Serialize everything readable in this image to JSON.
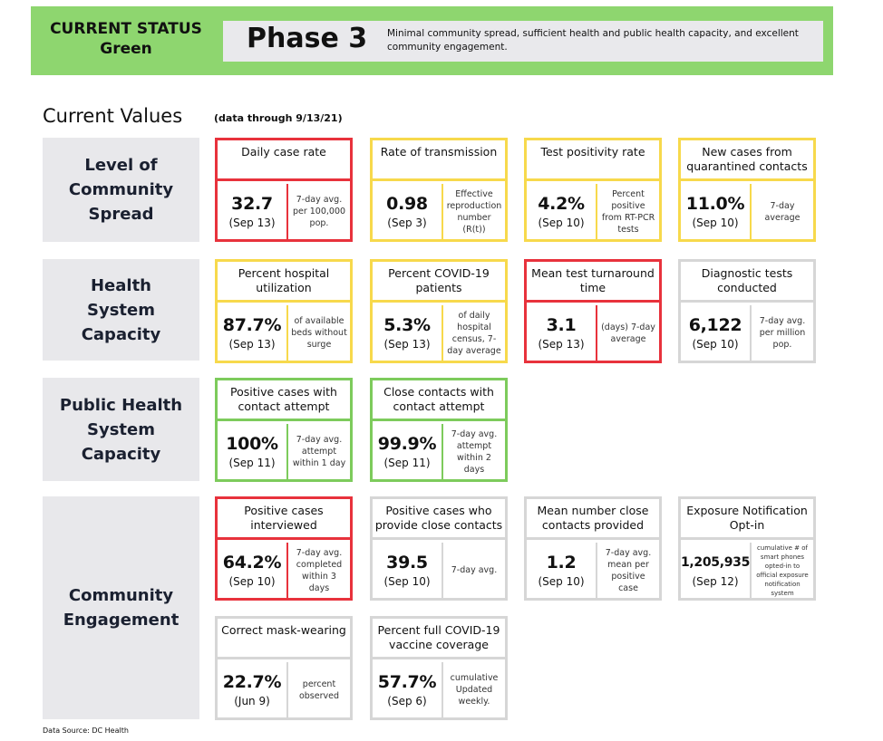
{
  "banner": {
    "status_label": "CURRENT STATUS",
    "status_value": "Green",
    "phase": "Phase 3",
    "phase_description": "Minimal community spread, sufficient health and public health capacity, and excellent community engagement."
  },
  "current_values": {
    "title": "Current Values",
    "note": "(data through 9/13/21)"
  },
  "colors": {
    "red": "#e8323c",
    "yellow": "#f7d94c",
    "green": "#7dcb5c",
    "gray": "#d6d6d6",
    "banner": "#8ed66f"
  },
  "sections": [
    {
      "label": "Level of Community Spread",
      "cards": [
        {
          "title": "Daily case rate",
          "value": "32.7",
          "date": "(Sep 13)",
          "note": "7-day avg. per 100,000 pop.",
          "status": "red"
        },
        {
          "title": "Rate of transmission",
          "value": "0.98",
          "date": "(Sep 3)",
          "note": "Effective reproduction number (R(t))",
          "status": "yellow"
        },
        {
          "title": "Test positivity rate",
          "value": "4.2%",
          "date": "(Sep 10)",
          "note": "Percent positive from RT-PCR tests",
          "status": "yellow"
        },
        {
          "title": "New cases from quarantined contacts",
          "value": "11.0%",
          "date": "(Sep 10)",
          "note": "7-day average",
          "status": "yellow"
        }
      ]
    },
    {
      "label": "Health System Capacity",
      "cards": [
        {
          "title": "Percent hospital utilization",
          "value": "87.7%",
          "date": "(Sep 13)",
          "note": "of available beds without surge",
          "status": "yellow"
        },
        {
          "title": "Percent COVID-19 patients",
          "value": "5.3%",
          "date": "(Sep 13)",
          "note": "of daily hospital census, 7-day average",
          "status": "yellow"
        },
        {
          "title": "Mean test turnaround time",
          "value": "3.1",
          "date": "(Sep 13)",
          "note": "(days) 7-day average",
          "status": "red"
        },
        {
          "title": "Diagnostic tests conducted",
          "value": "6,122",
          "date": "(Sep 10)",
          "note": "7-day avg. per million pop.",
          "status": "gray"
        }
      ]
    },
    {
      "label": "Public Health System Capacity",
      "cards": [
        {
          "title": "Positive cases with contact attempt",
          "value": "100%",
          "date": "(Sep 11)",
          "note": "7-day avg. attempt within 1 day",
          "status": "green"
        },
        {
          "title": "Close contacts with contact attempt",
          "value": "99.9%",
          "date": "(Sep 11)",
          "note": "7-day avg. attempt within 2 days",
          "status": "green"
        }
      ]
    },
    {
      "label": "Community Engagement",
      "cards": [
        {
          "title": "Positive cases interviewed",
          "value": "64.2%",
          "date": "(Sep 10)",
          "note": "7-day avg. completed within 3 days",
          "status": "red"
        },
        {
          "title": "Positive cases who provide close contacts",
          "value": "39.5",
          "date": "(Sep 10)",
          "note": "7-day avg.",
          "status": "gray"
        },
        {
          "title": "Mean number close contacts provided",
          "value": "1.2",
          "date": "(Sep 10)",
          "note": "7-day avg. mean per positive case",
          "status": "gray"
        },
        {
          "title": "Exposure Notification Opt-in",
          "value": "1,205,935",
          "date": "(Sep 12)",
          "note": "cumulative # of smart phones opted-in to official exposure notification system",
          "status": "gray"
        },
        {
          "title": "Correct mask-wearing",
          "value": "22.7%",
          "date": "(Jun 9)",
          "note": "percent observed",
          "status": "gray"
        },
        {
          "title": "Percent full COVID-19 vaccine coverage",
          "value": "57.7%",
          "date": "(Sep 6)",
          "note": "cumulative Updated weekly.",
          "status": "gray"
        }
      ]
    }
  ],
  "footer": {
    "source": "Data Source: DC Health"
  }
}
